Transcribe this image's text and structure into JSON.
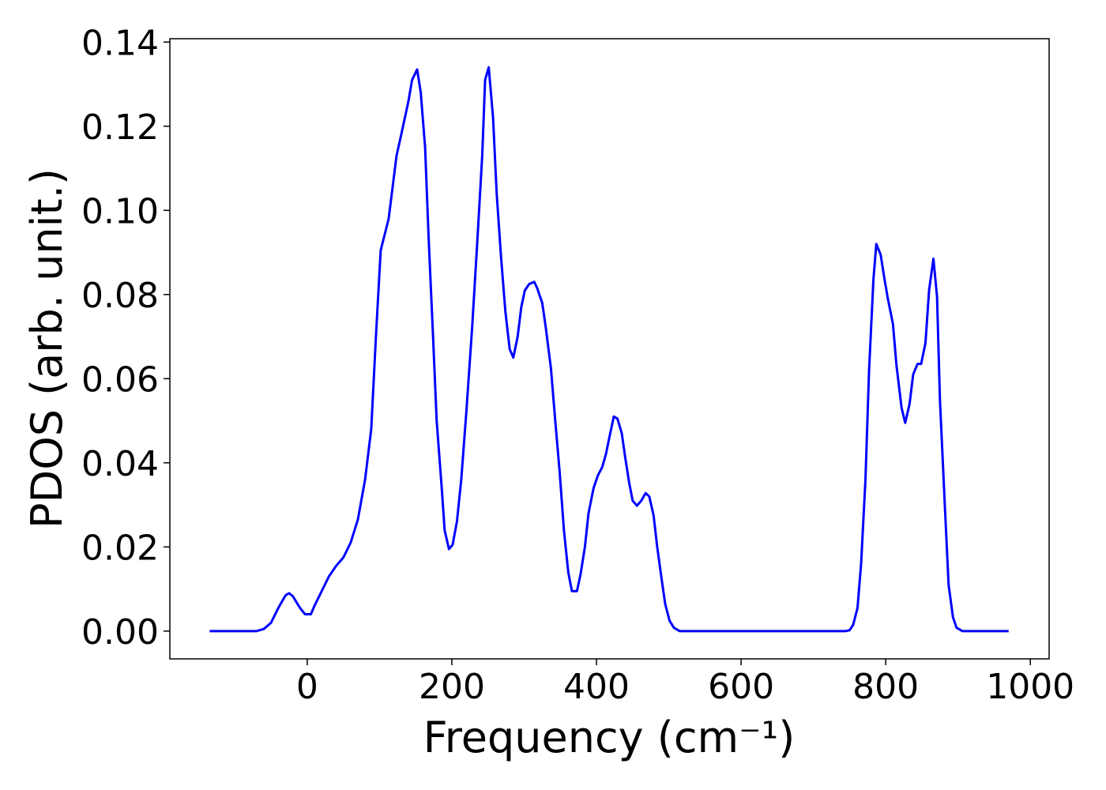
{
  "chart_data": {
    "type": "line",
    "xlabel": "Frequency (cm⁻¹)",
    "ylabel": "PDOS (arb. unit.)",
    "xlim": [
      -190,
      1026
    ],
    "ylim": [
      -0.0066,
      0.1408
    ],
    "xticks": [
      0,
      200,
      400,
      600,
      800,
      1000
    ],
    "yticks": [
      {
        "value": 0,
        "label": "0.00"
      },
      {
        "value": 0.02,
        "label": "0.02"
      },
      {
        "value": 0.04,
        "label": "0.04"
      },
      {
        "value": 0.06,
        "label": "0.06"
      },
      {
        "value": 0.08,
        "label": "0.08"
      },
      {
        "value": 0.1,
        "label": "0.10"
      },
      {
        "value": 0.12,
        "label": "0.12"
      },
      {
        "value": 0.14,
        "label": "0.14"
      }
    ],
    "x": [
      -135,
      -70,
      -60,
      -50,
      -40,
      -30,
      -25,
      -20,
      -10,
      -3,
      5,
      10,
      20,
      30,
      40,
      50,
      60,
      70,
      80,
      88.5,
      95,
      101.6,
      112.6,
      123.5,
      130,
      140,
      145,
      152,
      157,
      163,
      168,
      174,
      179,
      186,
      190,
      196,
      201,
      207,
      213,
      220,
      228,
      235,
      242,
      246,
      251,
      257,
      262,
      268,
      274,
      280,
      285,
      291,
      296,
      301,
      307,
      314,
      318,
      325,
      330,
      337,
      343,
      349,
      355,
      361,
      366,
      373,
      378,
      384,
      389,
      396,
      402,
      408,
      413,
      419,
      424,
      429,
      435,
      440,
      445,
      450,
      456,
      462,
      468,
      473,
      479,
      484,
      490,
      495,
      501,
      507,
      515,
      744,
      750,
      755,
      761,
      766,
      772,
      777,
      783,
      787,
      793,
      798,
      803,
      810,
      815,
      822,
      827,
      833,
      838,
      844,
      849,
      855,
      860,
      866,
      871,
      875,
      882,
      887,
      893,
      898,
      906,
      970
    ],
    "series": [
      {
        "name": "PDOS",
        "color": "#0000ff",
        "values": [
          0,
          0,
          0.0005,
          0.002,
          0.0055,
          0.0085,
          0.009,
          0.0083,
          0.0055,
          0.004,
          0.004,
          0.006,
          0.0095,
          0.013,
          0.0155,
          0.0175,
          0.021,
          0.0265,
          0.036,
          0.048,
          0.07,
          0.0905,
          0.098,
          0.113,
          0.118,
          0.126,
          0.131,
          0.1335,
          0.128,
          0.115,
          0.093,
          0.07,
          0.05,
          0.034,
          0.024,
          0.0195,
          0.0205,
          0.026,
          0.036,
          0.052,
          0.072,
          0.092,
          0.113,
          0.131,
          0.134,
          0.122,
          0.104,
          0.089,
          0.076,
          0.067,
          0.065,
          0.07,
          0.077,
          0.081,
          0.0825,
          0.083,
          0.0815,
          0.078,
          0.072,
          0.0625,
          0.05,
          0.038,
          0.024,
          0.014,
          0.0095,
          0.0095,
          0.0135,
          0.02,
          0.028,
          0.034,
          0.037,
          0.039,
          0.042,
          0.047,
          0.051,
          0.0505,
          0.047,
          0.041,
          0.0355,
          0.031,
          0.0298,
          0.031,
          0.0328,
          0.032,
          0.0275,
          0.02,
          0.0125,
          0.0065,
          0.0025,
          0.0008,
          0,
          0,
          0.0002,
          0.0015,
          0.0055,
          0.016,
          0.036,
          0.062,
          0.0835,
          0.092,
          0.0895,
          0.084,
          0.079,
          0.073,
          0.063,
          0.053,
          0.0495,
          0.054,
          0.061,
          0.0635,
          0.0635,
          0.0685,
          0.081,
          0.0885,
          0.0795,
          0.055,
          0.029,
          0.011,
          0.0033,
          0.0008,
          0,
          0
        ]
      }
    ]
  }
}
